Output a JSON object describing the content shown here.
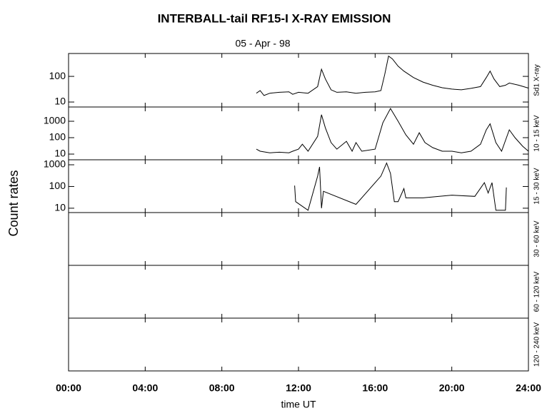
{
  "chart_data": [
    {
      "type": "line",
      "title": "INTERBALL-tail  RF15-I  X-RAY  EMISSION",
      "subtitle": "05 - Apr - 98",
      "ylabel": "Count rates",
      "label": "Sd1 X-ray",
      "log": true,
      "color": "#000000",
      "x": [
        9.8,
        10.0,
        10.2,
        10.5,
        11.0,
        11.5,
        11.7,
        12.0,
        12.5,
        13.0,
        13.2,
        13.4,
        13.7,
        14.0,
        14.5,
        15.0,
        15.5,
        16.0,
        16.3,
        16.5,
        16.7,
        16.9,
        17.2,
        17.5,
        18.0,
        18.5,
        19.0,
        19.5,
        20.0,
        20.5,
        21.0,
        21.5,
        21.8,
        22.0,
        22.2,
        22.5,
        22.8,
        23.0,
        23.5,
        24.0
      ],
      "values": [
        22,
        28,
        18,
        22,
        24,
        25,
        20,
        24,
        22,
        40,
        190,
        80,
        30,
        24,
        25,
        22,
        24,
        25,
        28,
        120,
        620,
        480,
        250,
        160,
        90,
        60,
        45,
        36,
        32,
        30,
        34,
        40,
        90,
        160,
        80,
        40,
        45,
        55,
        45,
        35
      ],
      "ylim": [
        6.4,
        780
      ],
      "yticks": [
        10,
        100
      ]
    },
    {
      "type": "line",
      "label": "10 - 15 keV",
      "log": true,
      "color": "#000000",
      "x": [
        9.8,
        10.0,
        10.5,
        11.0,
        11.5,
        11.7,
        12.0,
        12.2,
        12.5,
        13.0,
        13.2,
        13.4,
        13.7,
        14.0,
        14.5,
        14.8,
        15.0,
        15.3,
        16.0,
        16.4,
        16.8,
        17.2,
        17.6,
        18.0,
        18.3,
        18.6,
        19.0,
        19.5,
        20.0,
        20.5,
        21.0,
        21.5,
        21.8,
        22.0,
        22.3,
        22.6,
        23.0,
        23.3,
        23.7,
        24.0
      ],
      "values": [
        20,
        15,
        12,
        13,
        12,
        15,
        20,
        40,
        15,
        120,
        2500,
        400,
        50,
        20,
        60,
        15,
        50,
        15,
        20,
        800,
        6000,
        1000,
        150,
        40,
        200,
        50,
        25,
        15,
        15,
        12,
        15,
        40,
        300,
        700,
        50,
        15,
        300,
        100,
        30,
        15
      ],
      "ylim": [
        4.5,
        7400
      ],
      "yticks": [
        10,
        100,
        1000
      ]
    },
    {
      "type": "line",
      "label": "15 - 30 keV",
      "log": true,
      "color": "#000000",
      "x": [
        11.8,
        11.85,
        12.5,
        13.0,
        13.1,
        13.2,
        13.3,
        15.0,
        16.3,
        16.6,
        16.8,
        17.0,
        17.2,
        17.5,
        17.6,
        18.5,
        20.0,
        21.2,
        21.7,
        21.9,
        22.1,
        22.3,
        22.8,
        22.85
      ],
      "values": [
        110,
        20,
        8,
        300,
        800,
        10,
        60,
        15,
        300,
        1200,
        400,
        20,
        20,
        80,
        30,
        30,
        40,
        35,
        150,
        50,
        150,
        8,
        8,
        90
      ],
      "ylim": [
        6.3,
        1700
      ],
      "yticks": [
        10,
        100,
        1000
      ]
    },
    {
      "type": "line",
      "label": "30 - 60 keV"
    },
    {
      "type": "line",
      "label": "60 - 120 keV"
    },
    {
      "type": "line",
      "label": "120 - 240 keV",
      "xlabel": "time UT",
      "xlim": [
        0,
        24
      ],
      "xticks": [
        {
          "value": 0,
          "label": "00:00"
        },
        {
          "value": 4,
          "label": "04:00"
        },
        {
          "value": 8,
          "label": "08:00"
        },
        {
          "value": 12,
          "label": "12:00"
        },
        {
          "value": 16,
          "label": "16:00"
        },
        {
          "value": 20,
          "label": "20:00"
        },
        {
          "value": 24,
          "label": "24:00"
        }
      ]
    }
  ]
}
